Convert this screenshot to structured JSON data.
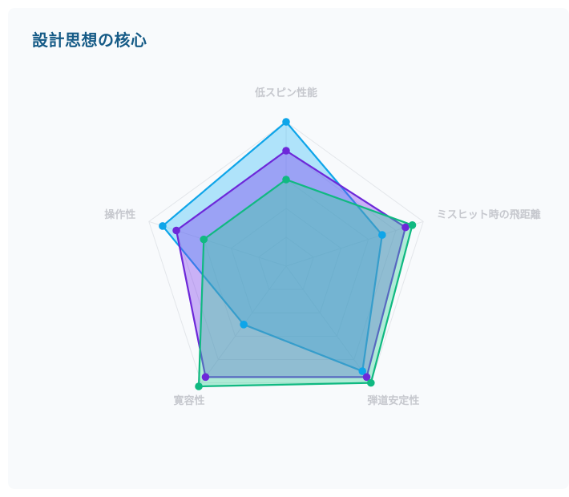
{
  "card": {
    "title": "設計思想の核心"
  },
  "chart_data": {
    "type": "radar",
    "title": "設計思想の核心",
    "axes": [
      "低スピン性能",
      "ミスヒット時の飛距離",
      "弾道安定性",
      "寛容性",
      "操作性"
    ],
    "range": [
      0,
      10
    ],
    "grid": true,
    "legend": "none",
    "series": [
      {
        "color": "#0ea5e9",
        "fill": "#38bdf8",
        "values": [
          10,
          7,
          9,
          5,
          9
        ]
      },
      {
        "color": "#6d28d9",
        "fill": "#7c3aed",
        "values": [
          8,
          8.7,
          9.5,
          9.5,
          8
        ]
      },
      {
        "color": "#10b981",
        "fill": "#34d399",
        "values": [
          6,
          9.2,
          10,
          10.3,
          6
        ]
      }
    ]
  }
}
